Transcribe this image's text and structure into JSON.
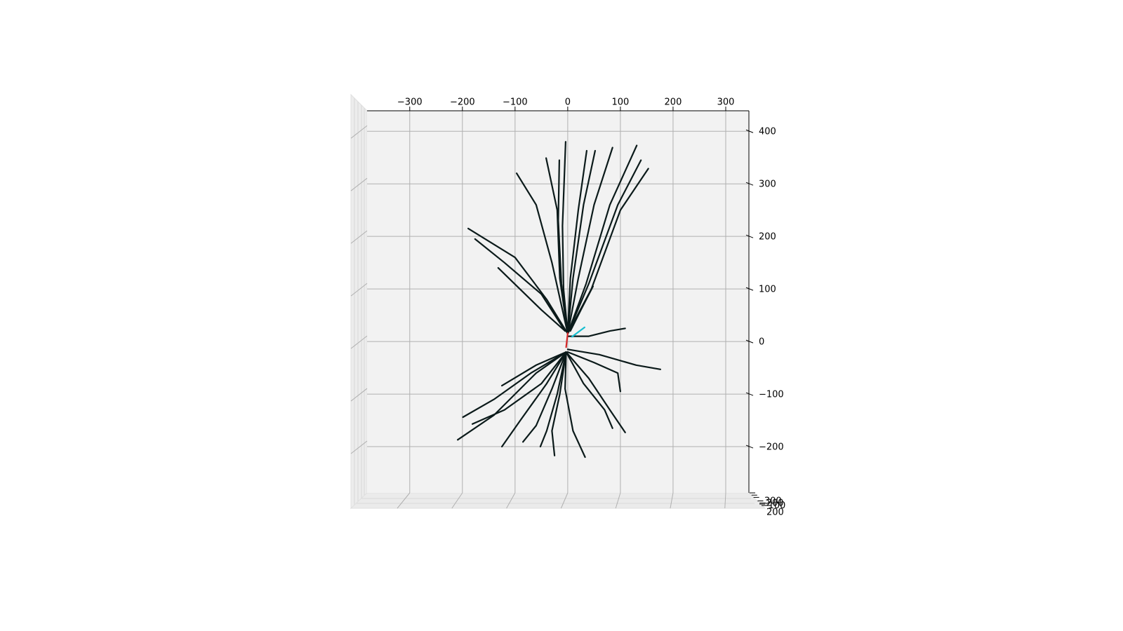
{
  "chart_data": {
    "type": "line",
    "projection": "3d",
    "xlim": [
      -381,
      344
    ],
    "ylim": [
      -288,
      439
    ],
    "zlim": [
      -300,
      200
    ],
    "xticks": [
      {
        "value": -300,
        "label": "−300"
      },
      {
        "value": -200,
        "label": "−200"
      },
      {
        "value": -100,
        "label": "−100"
      },
      0,
      100,
      200,
      300
    ],
    "yticks": [
      {
        "value": -200,
        "label": "−200"
      },
      {
        "value": -100,
        "label": "−100"
      },
      0,
      100,
      200,
      300,
      400
    ],
    "zticks": [
      {
        "value": -300,
        "label": "−300"
      },
      {
        "value": -200,
        "label": "−200"
      },
      {
        "value": -100,
        "label": "−100"
      },
      200
    ],
    "grid": true,
    "color": "#0b1a1a",
    "series": [
      {
        "x": [
          0,
          -8,
          -10,
          -4
        ],
        "values": [
          15,
          100,
          220,
          380
        ]
      },
      {
        "x": [
          0,
          -15,
          -20,
          -41
        ],
        "values": [
          15,
          120,
          250,
          349
        ]
      },
      {
        "x": [
          0,
          -12,
          -18,
          -16
        ],
        "values": [
          15,
          110,
          230,
          345
        ]
      },
      {
        "x": [
          0,
          5,
          20,
          36
        ],
        "values": [
          15,
          120,
          250,
          363
        ]
      },
      {
        "x": [
          0,
          10,
          30,
          52
        ],
        "values": [
          15,
          120,
          260,
          363
        ]
      },
      {
        "x": [
          0,
          20,
          50,
          85
        ],
        "values": [
          15,
          120,
          260,
          369
        ]
      },
      {
        "x": [
          0,
          35,
          80,
          131
        ],
        "values": [
          15,
          110,
          260,
          373
        ]
      },
      {
        "x": [
          0,
          40,
          95,
          139
        ],
        "values": [
          15,
          110,
          260,
          345
        ]
      },
      {
        "x": [
          0,
          45,
          100,
          153
        ],
        "values": [
          15,
          100,
          250,
          329
        ]
      },
      {
        "x": [
          0,
          -30,
          -60,
          -97
        ],
        "values": [
          15,
          150,
          260,
          320
        ]
      },
      {
        "x": [
          0,
          -40,
          -100,
          -189
        ],
        "values": [
          15,
          80,
          160,
          215
        ]
      },
      {
        "x": [
          -5,
          -50,
          -120,
          -176
        ],
        "values": [
          20,
          90,
          150,
          195
        ]
      },
      {
        "x": [
          -5,
          -50,
          -132
        ],
        "values": [
          20,
          60,
          140
        ]
      },
      {
        "x": [
          5,
          25,
          48
        ],
        "values": [
          20,
          60,
          105
        ]
      },
      {
        "x": [
          0,
          40,
          80,
          109
        ],
        "values": [
          10,
          10,
          20,
          25
        ]
      },
      {
        "x": [
          0,
          60,
          130,
          176
        ],
        "values": [
          -15,
          -25,
          -45,
          -53
        ]
      },
      {
        "x": [
          0,
          50,
          95,
          100
        ],
        "values": [
          -20,
          -40,
          -60,
          -95
        ]
      },
      {
        "x": [
          -3,
          40,
          80,
          109
        ],
        "values": [
          -20,
          -70,
          -130,
          -173
        ]
      },
      {
        "x": [
          -3,
          30,
          70,
          85
        ],
        "values": [
          -20,
          -80,
          -130,
          -165
        ]
      },
      {
        "x": [
          -3,
          -5,
          10,
          33
        ],
        "values": [
          -20,
          -90,
          -170,
          -220
        ]
      },
      {
        "x": [
          -3,
          -15,
          -30,
          -25
        ],
        "values": [
          -20,
          -100,
          -170,
          -217
        ]
      },
      {
        "x": [
          -3,
          -40,
          -90,
          -125
        ],
        "values": [
          -20,
          -80,
          -150,
          -200
        ]
      },
      {
        "x": [
          -3,
          -60,
          -140,
          -209
        ],
        "values": [
          -20,
          -60,
          -140,
          -187
        ]
      },
      {
        "x": [
          -3,
          -70,
          -140,
          -199
        ],
        "values": [
          -20,
          -60,
          -110,
          -144
        ]
      },
      {
        "x": [
          -3,
          -60,
          -125
        ],
        "values": [
          -20,
          -45,
          -84
        ]
      },
      {
        "x": [
          -3,
          -50,
          -120,
          -181
        ],
        "values": [
          -20,
          -80,
          -130,
          -157
        ]
      },
      {
        "x": [
          -3,
          -30,
          -60,
          -85
        ],
        "values": [
          -20,
          -90,
          -160,
          -191
        ]
      },
      {
        "x": [
          -3,
          -20,
          -40,
          -52
        ],
        "values": [
          -20,
          -100,
          -170,
          -200
        ]
      },
      {
        "x": [
          0,
          -3
        ],
        "values": [
          16,
          -11
        ],
        "color": "#d62728"
      },
      {
        "x": [
          8,
          32
        ],
        "values": [
          9,
          27
        ],
        "color": "#17becf"
      }
    ]
  }
}
